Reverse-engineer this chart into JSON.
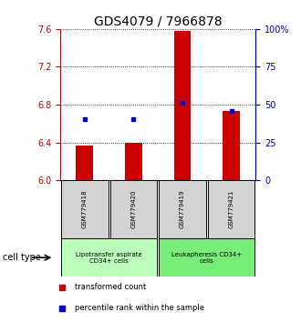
{
  "title": "GDS4079 / 7966878",
  "samples": [
    "GSM779418",
    "GSM779420",
    "GSM779419",
    "GSM779421"
  ],
  "red_bar_tops": [
    6.37,
    6.4,
    7.58,
    6.73
  ],
  "blue_y": [
    6.65,
    6.65,
    6.82,
    6.73
  ],
  "y_min": 6.0,
  "y_max": 7.6,
  "y_ticks": [
    6.0,
    6.4,
    6.8,
    7.2,
    7.6
  ],
  "right_y_ticks": [
    0,
    25,
    50,
    75,
    100
  ],
  "right_y_labels": [
    "0",
    "25",
    "50",
    "75",
    "100%"
  ],
  "groups": [
    {
      "label": "Lipotransfer aspirate\nCD34+ cells",
      "color": "#bbffbb",
      "samples": [
        0,
        1
      ]
    },
    {
      "label": "Leukapheresis CD34+\ncells",
      "color": "#77ee77",
      "samples": [
        2,
        3
      ]
    }
  ],
  "group_row_label": "cell type",
  "legend_red_label": "transformed count",
  "legend_blue_label": "percentile rank within the sample",
  "bar_color": "#cc0000",
  "dot_color": "#0000cc",
  "bar_width": 0.35,
  "baseline": 6.0,
  "left_axis_color": "#cc0000",
  "right_axis_color": "#0000cc",
  "grid_color": "#000000",
  "sample_box_color": "#d3d3d3",
  "title_fontsize": 10,
  "tick_fontsize": 7,
  "label_fontsize": 6.5
}
